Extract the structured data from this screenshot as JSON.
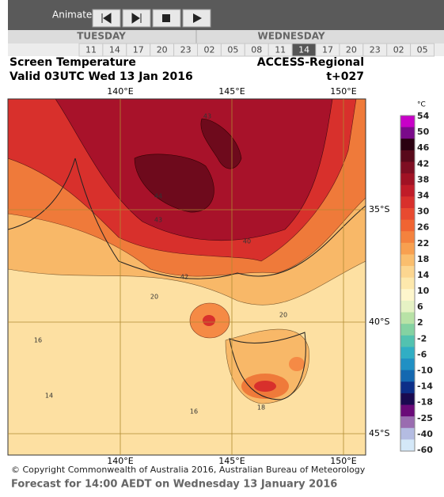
{
  "toolbar": {
    "label": "Animate"
  },
  "timeline": {
    "days": [
      "TUESDAY",
      "WEDNESDAY"
    ],
    "hours": [
      "11",
      "14",
      "17",
      "20",
      "23",
      "02",
      "05",
      "08",
      "11",
      "14",
      "17",
      "20",
      "23",
      "02",
      "05"
    ]
  },
  "header": {
    "title": "Screen Temperature",
    "valid": "Valid 03UTC Wed 13 Jan 2016",
    "model": "ACCESS-Regional",
    "step": "t+027"
  },
  "map": {
    "lon_labels_top": [
      "140°E",
      "145°E",
      "150°E"
    ],
    "lon_labels_bottom": [
      "140°E",
      "145°E",
      "150°E"
    ],
    "lat_labels": [
      "35°S",
      "40°S",
      "45°S"
    ],
    "contour_labels": [
      "44",
      "43",
      "43",
      "42",
      "40",
      "20",
      "20",
      "16",
      "14",
      "16",
      "18"
    ],
    "unit": "°C",
    "colorbar_labels": [
      "54",
      "50",
      "46",
      "42",
      "38",
      "34",
      "30",
      "26",
      "22",
      "18",
      "14",
      "10",
      "6",
      "2",
      "-2",
      "-6",
      "-10",
      "-14",
      "-18",
      "-25",
      "-40",
      "-60"
    ]
  },
  "footer": {
    "copyright": "© Copyright Commonwealth of Australia 2016, Australian Bureau of Meteorology",
    "forecast": "Forecast for 14:00 AEDT on Wednesday 13 January 2016"
  }
}
